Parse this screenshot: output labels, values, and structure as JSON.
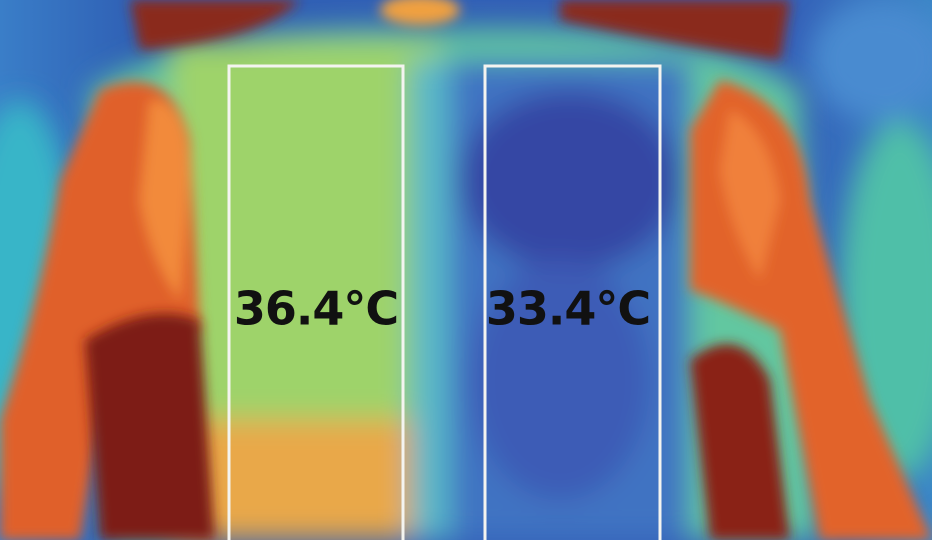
{
  "labels": [
    {
      "text": "36.4°C"
    },
    {
      "text": "33.4°C"
    }
  ]
}
